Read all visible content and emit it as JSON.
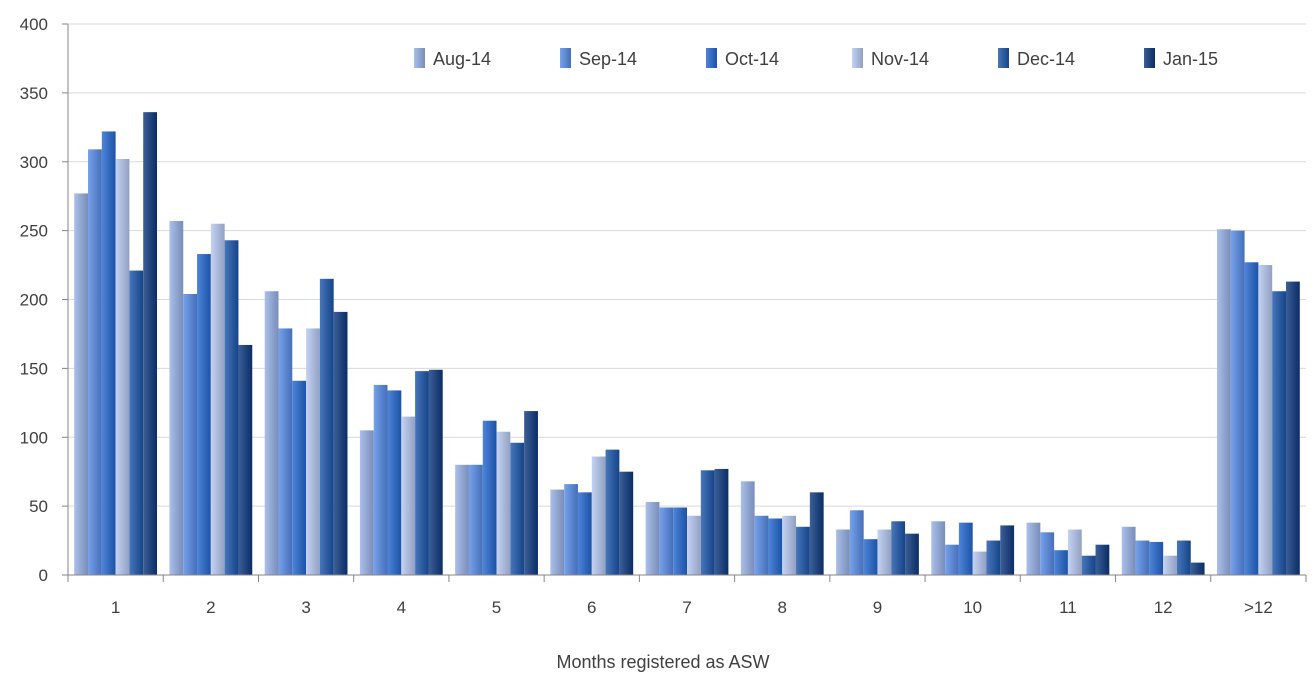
{
  "chart_data": {
    "type": "bar",
    "title": "",
    "xlabel": "Months registered as ASW",
    "ylabel": "",
    "ylim": [
      0,
      400
    ],
    "yticks": [
      0,
      50,
      100,
      150,
      200,
      250,
      300,
      350,
      400
    ],
    "grid": true,
    "legend_position": "top-right",
    "categories": [
      "1",
      "2",
      "3",
      "4",
      "5",
      "6",
      "7",
      "8",
      "9",
      "10",
      "11",
      "12",
      ">12"
    ],
    "series": [
      {
        "name": "Aug-14",
        "color": "#8ea4cf",
        "values": [
          277,
          257,
          206,
          105,
          80,
          62,
          53,
          68,
          33,
          39,
          38,
          35,
          251
        ]
      },
      {
        "name": "Sep-14",
        "color": "#5b86cf",
        "values": [
          309,
          204,
          179,
          138,
          80,
          66,
          49,
          43,
          47,
          22,
          31,
          25,
          250
        ]
      },
      {
        "name": "Oct-14",
        "color": "#3369bd",
        "values": [
          322,
          233,
          141,
          134,
          112,
          60,
          49,
          41,
          26,
          38,
          18,
          24,
          227
        ]
      },
      {
        "name": "Nov-14",
        "color": "#a8b7d8",
        "values": [
          302,
          255,
          179,
          115,
          104,
          86,
          43,
          43,
          33,
          17,
          33,
          14,
          225
        ]
      },
      {
        "name": "Dec-14",
        "color": "#2b5a9e",
        "values": [
          221,
          243,
          215,
          148,
          96,
          91,
          76,
          35,
          39,
          25,
          14,
          25,
          206
        ]
      },
      {
        "name": "Jan-15",
        "color": "#1f437a",
        "values": [
          336,
          167,
          191,
          149,
          119,
          75,
          77,
          60,
          30,
          36,
          22,
          9,
          213
        ]
      }
    ]
  }
}
